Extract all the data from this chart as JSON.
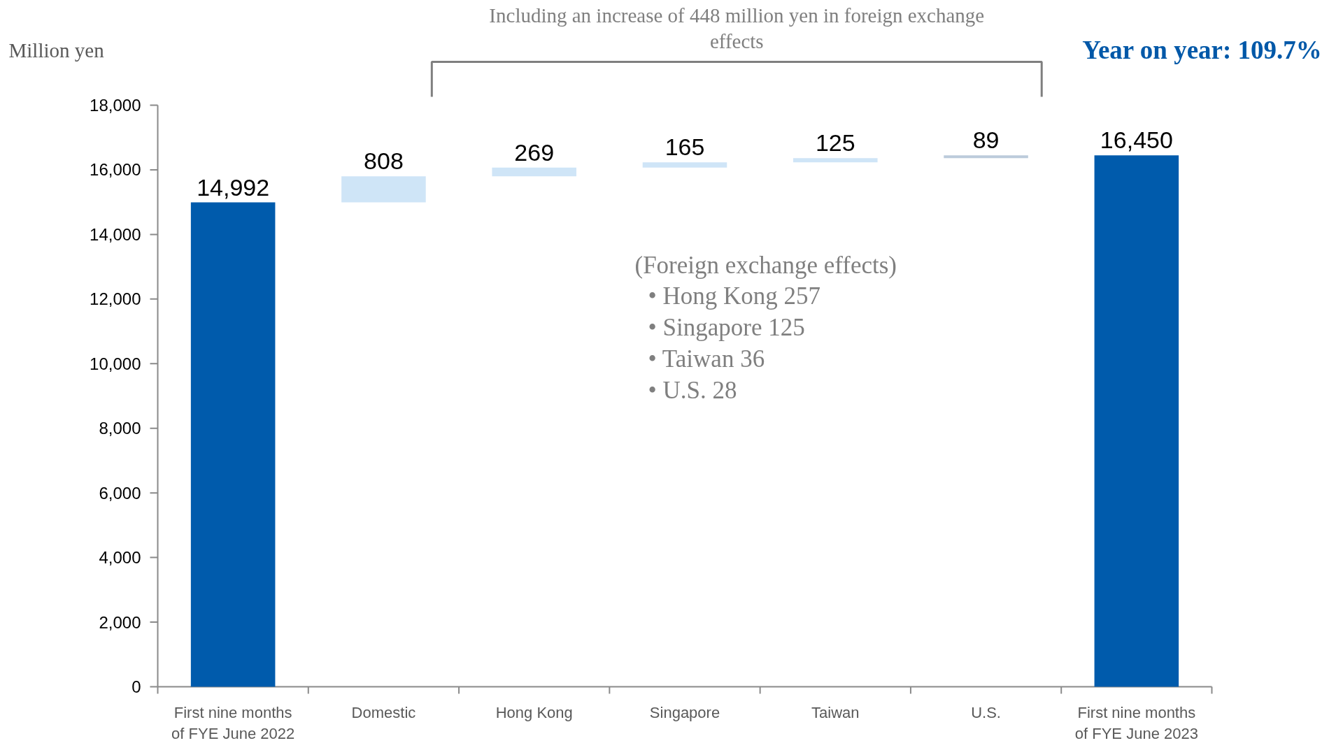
{
  "chart_data": {
    "type": "bar",
    "ylabel": "Million yen",
    "categories": [
      "First nine months of FYE June 2022",
      "Domestic",
      "Hong Kong",
      "Singapore",
      "Taiwan",
      "U.S.",
      "First nine months of FYE June 2023"
    ],
    "values": [
      14992,
      808,
      269,
      165,
      125,
      89,
      16450
    ],
    "value_labels": [
      "14,992",
      "808",
      "269",
      "165",
      "125",
      "89",
      "16,450"
    ],
    "base": [
      0,
      14992,
      15800,
      16069,
      16234,
      16359,
      0
    ],
    "colors": [
      "#005bac",
      "#cfe5f7",
      "#cfe5f7",
      "#cfe5f7",
      "#cfe5f7",
      "#bccbdb",
      "#005bac"
    ],
    "ylim": [
      0,
      18000
    ],
    "yticks": [
      0,
      {
        "value": 2000,
        "label": "2,000"
      },
      {
        "value": 4000,
        "label": "4,000"
      },
      {
        "value": 6000,
        "label": "6,000"
      },
      {
        "value": 8000,
        "label": "8,000"
      },
      {
        "value": 10000,
        "label": "10,000"
      },
      {
        "value": 12000,
        "label": "12,000"
      },
      {
        "value": 14000,
        "label": "14,000"
      },
      {
        "value": 16000,
        "label": "16,000"
      },
      {
        "value": 18000,
        "label": "18,000"
      }
    ],
    "annotations": [
      "Including an increase of 448 million yen in foreign exchange effects",
      "Year on year: 109.7%",
      "(Foreign exchange effects)",
      "• Hong Kong 257",
      "• Singapore 125",
      "• Taiwan 36",
      "• U.S. 28"
    ]
  }
}
